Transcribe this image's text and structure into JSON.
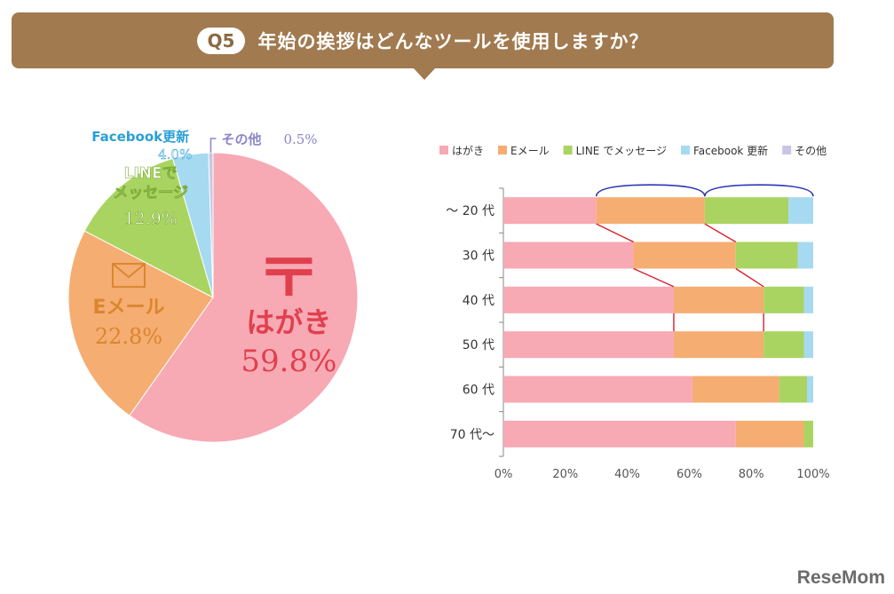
{
  "banner": {
    "badge": "Q5",
    "question": "年始の挨拶はどんなツールを使用しますか？"
  },
  "brand": "ReseMom",
  "colors": {
    "hagaki": "#f7a9b4",
    "email": "#f6ad72",
    "line": "#a9d461",
    "facebook": "#a6daf0",
    "other": "#c9c6e5",
    "banner": "#a17a4f"
  },
  "chart_data": [
    {
      "type": "pie",
      "slices": [
        {
          "name": "はがき",
          "value": 59.8,
          "label": "59.8%",
          "color": "#f7a9b4",
          "label_color": "#e0404e",
          "icon": "post-mark-icon"
        },
        {
          "name": "Eメール",
          "value": 22.8,
          "label": "22.8%",
          "color": "#f6ad72",
          "label_color": "#d9862f",
          "icon": "envelope-icon"
        },
        {
          "name": "LINEでメッセージ",
          "lines": [
            "LINEで",
            "メッセージ"
          ],
          "value": 12.9,
          "label": "12.9%",
          "color": "#a9d461",
          "label_color": "#ffffff"
        },
        {
          "name": "Facebook更新",
          "value": 4.0,
          "label": "4.0%",
          "color": "#a6daf0",
          "label_color": "#2a9fd6"
        },
        {
          "name": "その他",
          "value": 0.5,
          "label": "0.5%",
          "color": "#c9c6e5",
          "label_color": "#8b86c9"
        }
      ]
    },
    {
      "type": "bar",
      "orientation": "horizontal",
      "stacked": true,
      "categories": [
        "～ 20 代",
        "30 代",
        "40 代",
        "50 代",
        "60 代",
        "70 代～"
      ],
      "series": [
        {
          "name": "はがき",
          "color": "#f7a9b4",
          "values": [
            30,
            42,
            55,
            55,
            61,
            75
          ]
        },
        {
          "name": "Eメール",
          "color": "#f6ad72",
          "values": [
            35,
            33,
            29,
            29,
            28,
            22
          ]
        },
        {
          "name": "LINE でメッセージ",
          "color": "#a9d461",
          "values": [
            27,
            20,
            13,
            13,
            9,
            3
          ]
        },
        {
          "name": "Facebook 更新",
          "color": "#a6daf0",
          "values": [
            8,
            5,
            3,
            3,
            2,
            0
          ]
        },
        {
          "name": "その他",
          "color": "#c9c6e5",
          "values": [
            0,
            0,
            0,
            0,
            0,
            0
          ]
        }
      ],
      "xlim": [
        0,
        100
      ],
      "xticks": [
        "0%",
        "20%",
        "40%",
        "60%",
        "80%",
        "100%"
      ],
      "legend_position": "top",
      "annotations": "red connector lines between row boundaries; blue braces above the ～20代 row"
    }
  ]
}
